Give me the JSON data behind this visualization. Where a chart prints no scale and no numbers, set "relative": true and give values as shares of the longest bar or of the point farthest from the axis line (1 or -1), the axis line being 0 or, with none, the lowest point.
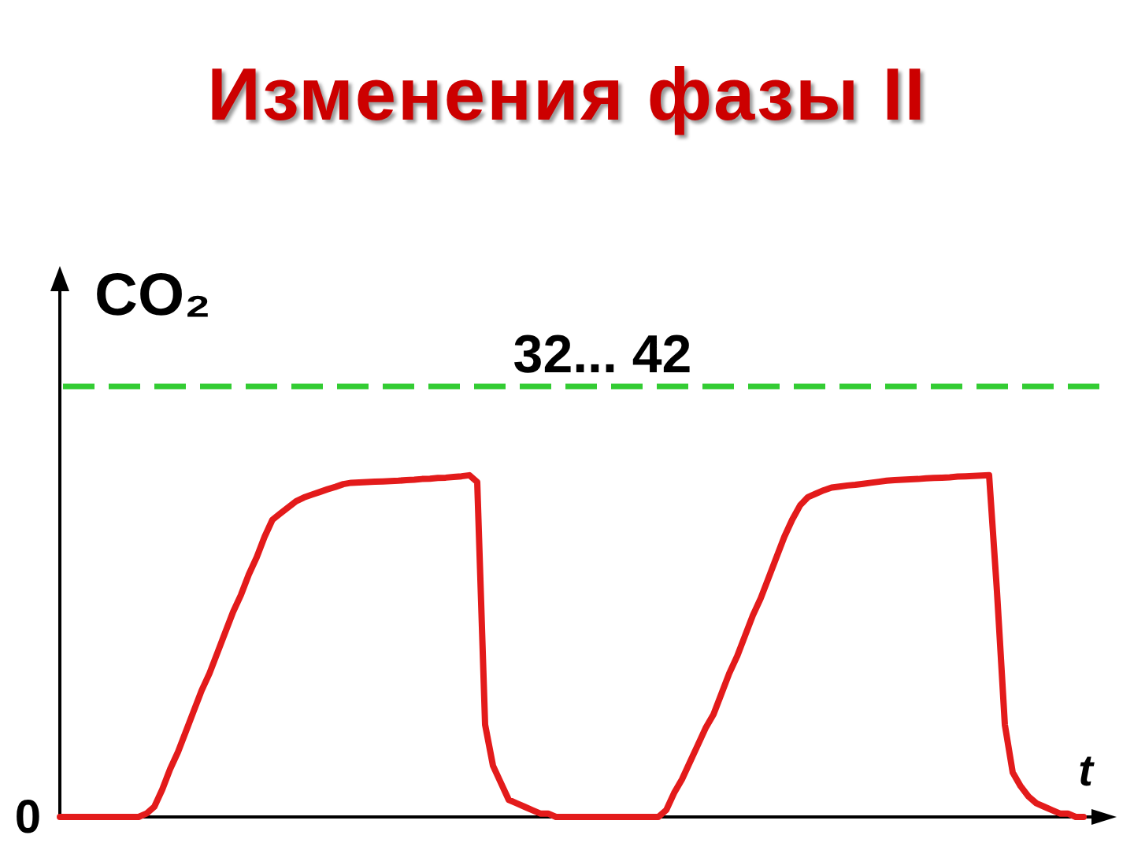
{
  "chart_data": {
    "type": "line",
    "title": "Изменения фазы II",
    "xlabel": "t",
    "ylabel": "CO₂",
    "relative": true,
    "marker": "none",
    "line_style": "solid",
    "color": "#e31b1b",
    "categories": [
      null,
      null,
      null,
      null,
      null,
      null,
      null,
      null,
      null,
      null,
      null,
      null,
      null,
      null,
      null,
      null,
      null,
      null,
      null,
      null,
      null,
      null,
      null,
      null,
      null,
      null,
      null,
      null,
      null,
      null,
      null,
      null,
      null,
      null,
      null,
      null,
      null,
      null,
      null,
      null,
      null,
      null,
      null,
      null,
      null,
      null,
      null,
      null,
      null,
      null,
      null,
      null,
      null,
      null,
      null,
      null,
      null,
      null,
      null,
      null,
      null,
      null,
      null,
      null,
      null,
      null,
      null,
      null,
      null,
      null,
      null,
      null,
      null,
      null,
      null,
      null,
      null,
      null,
      null,
      null,
      null,
      null,
      null,
      null,
      null,
      null,
      null,
      null,
      null,
      null,
      null,
      null,
      null,
      null,
      null,
      null,
      null,
      null,
      null,
      null,
      null,
      null,
      null,
      null,
      null,
      null,
      null,
      null,
      null,
      null,
      null,
      null,
      null,
      null,
      null,
      null,
      null,
      null,
      null,
      null,
      null,
      null,
      null,
      null,
      null,
      null,
      null,
      null,
      null,
      null,
      null,
      null,
      null,
      null
    ],
    "values": [
      0,
      0,
      0,
      0,
      0,
      0,
      0,
      0,
      0,
      0,
      0,
      0.01,
      0.03,
      0.08,
      0.14,
      0.19,
      0.25,
      0.31,
      0.37,
      0.42,
      0.48,
      0.54,
      0.6,
      0.65,
      0.71,
      0.76,
      0.82,
      0.87,
      0.888,
      0.906,
      0.924,
      0.935,
      0.943,
      0.951,
      0.959,
      0.966,
      0.974,
      0.978,
      0.979,
      0.98,
      0.981,
      0.982,
      0.983,
      0.984,
      0.986,
      0.987,
      0.989,
      0.99,
      0.992,
      0.993,
      0.995,
      0.997,
      1,
      0.98,
      0.27,
      0.15,
      0.1,
      0.05,
      0.04,
      0.03,
      0.02,
      0.01,
      0.01,
      0,
      0,
      0,
      0,
      0,
      0,
      0,
      0,
      0,
      0,
      0,
      0,
      0,
      0,
      0.02,
      0.07,
      0.11,
      0.16,
      0.21,
      0.26,
      0.3,
      0.36,
      0.42,
      0.47,
      0.53,
      0.59,
      0.64,
      0.7,
      0.76,
      0.82,
      0.87,
      0.912,
      0.936,
      0.946,
      0.956,
      0.964,
      0.967,
      0.97,
      0.972,
      0.975,
      0.978,
      0.981,
      0.984,
      0.986,
      0.987,
      0.988,
      0.989,
      0.991,
      0.992,
      0.993,
      0.994,
      0.996,
      0.997,
      0.998,
      0.999,
      1,
      0.66,
      0.27,
      0.13,
      0.09,
      0.06,
      0.04,
      0.03,
      0.02,
      0.01,
      0.01,
      0,
      0,
      null,
      null,
      null
    ],
    "ref_lines": [
      {
        "axis": "y",
        "value": 1.26,
        "color": "#33cc33",
        "line_style": "dashed"
      }
    ],
    "annotations": [
      "0",
      "32... 42"
    ]
  }
}
